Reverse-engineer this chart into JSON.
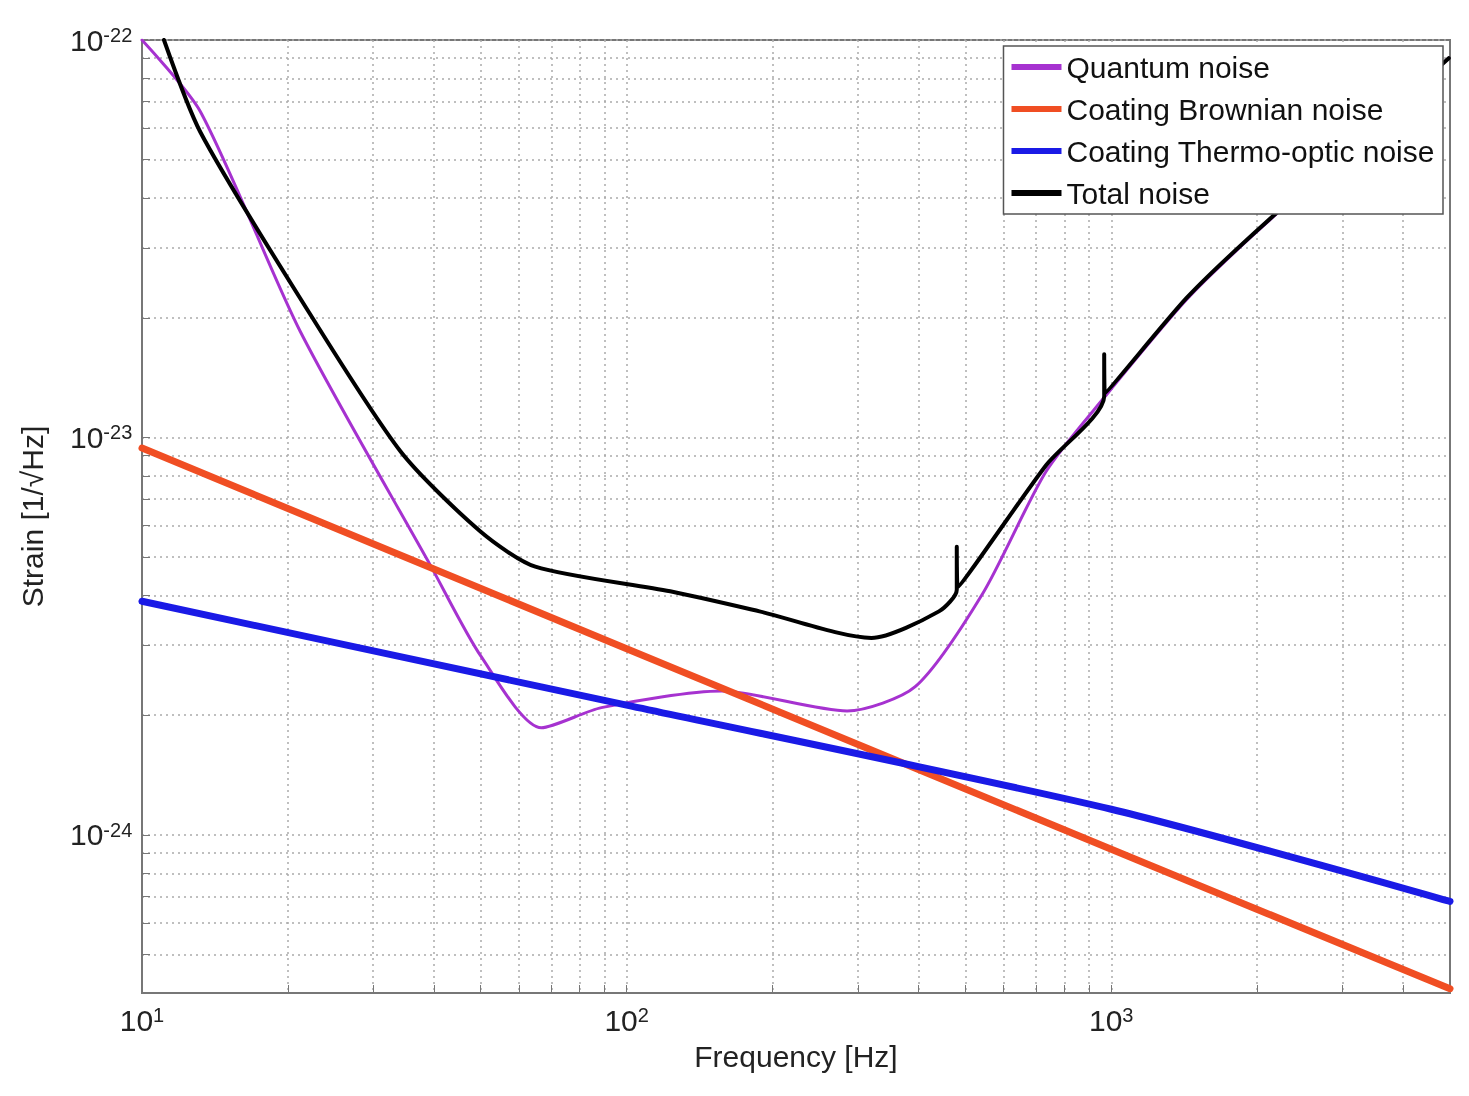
{
  "chart_data": {
    "type": "line",
    "xlabel": "Frequency [Hz]",
    "ylabel": "Strain [1/√Hz]",
    "log": "xy",
    "grid": true,
    "legend": "top right",
    "xlim": [
      10,
      5000
    ],
    "ylim": [
      4e-25,
      1e-22
    ],
    "xticks": [
      {
        "value": 10,
        "label": "10$^{1}$"
      },
      {
        "value": 20,
        "label": null
      },
      {
        "value": 30,
        "label": null
      },
      {
        "value": 40,
        "label": null
      },
      {
        "value": 50,
        "label": null
      },
      {
        "value": 60,
        "label": null
      },
      {
        "value": 70,
        "label": null
      },
      {
        "value": 80,
        "label": null
      },
      {
        "value": 90,
        "label": null
      },
      {
        "value": 100,
        "label": "10$^{2}$"
      },
      {
        "value": 200,
        "label": null
      },
      {
        "value": 300,
        "label": null
      },
      {
        "value": 400,
        "label": null
      },
      {
        "value": 500,
        "label": null
      },
      {
        "value": 600,
        "label": null
      },
      {
        "value": 700,
        "label": null
      },
      {
        "value": 800,
        "label": null
      },
      {
        "value": 900,
        "label": null
      },
      {
        "value": 1000,
        "label": "10$^{3}$"
      },
      {
        "value": 2000,
        "label": null
      },
      {
        "value": 3000,
        "label": null
      },
      {
        "value": 4000,
        "label": null
      }
    ],
    "yticks": [
      {
        "value": 1e-22,
        "label": "10$^{-22}$"
      },
      {
        "value": 9e-23,
        "label": null
      },
      {
        "value": 8e-23,
        "label": null
      },
      {
        "value": 7e-23,
        "label": null
      },
      {
        "value": 6e-23,
        "label": null
      },
      {
        "value": 5e-23,
        "label": null
      },
      {
        "value": 4e-23,
        "label": null
      },
      {
        "value": 3e-23,
        "label": null
      },
      {
        "value": 2e-23,
        "label": null
      },
      {
        "value": 1e-23,
        "label": "10$^{-23}$"
      },
      {
        "value": 9e-24,
        "label": null
      },
      {
        "value": 8e-24,
        "label": null
      },
      {
        "value": 7e-24,
        "label": null
      },
      {
        "value": 6e-24,
        "label": null
      },
      {
        "value": 5e-24,
        "label": null
      },
      {
        "value": 4e-24,
        "label": null
      },
      {
        "value": 3e-24,
        "label": null
      },
      {
        "value": 2e-24,
        "label": null
      },
      {
        "value": 1e-24,
        "label": "10$^{-24}$"
      },
      {
        "value": 9e-25,
        "label": null
      },
      {
        "value": 8e-25,
        "label": null
      },
      {
        "value": 7e-25,
        "label": null
      },
      {
        "value": 6e-25,
        "label": null
      },
      {
        "value": 5e-25,
        "label": null
      }
    ],
    "series": [
      {
        "name": "Quantum noise",
        "color": "#a632d0",
        "x": [
          10,
          13.2,
          21.2,
          39.5,
          50,
          66.7,
          88.7,
          157,
          285,
          394,
          543,
          733,
          967,
          1429,
          1968,
          4970
        ],
        "values": [
          1e-22,
          6.6e-23,
          1.85e-23,
          4.73e-24,
          2.82e-24,
          1.86e-24,
          2.09e-24,
          2.3e-24,
          2.05e-24,
          2.36e-24,
          4.05e-24,
          8.2e-24,
          1.26e-23,
          2.22e-23,
          3.24e-23,
          9e-23
        ]
      },
      {
        "name": "Coating Brownian noise",
        "color": "#f04e23",
        "x": [
          10,
          100,
          1000,
          5000
        ],
        "values": [
          9.4e-24,
          2.94e-24,
          9.2e-25,
          4.1e-25
        ]
      },
      {
        "name": "Coating Thermo-optic noise",
        "color": "#1a1ae6",
        "x": [
          10,
          100,
          1000,
          5000
        ],
        "values": [
          3.87e-24,
          2.12e-24,
          1.16e-24,
          6.8e-25
        ]
      },
      {
        "name": "Total noise",
        "color": "#000000",
        "x": [
          11.1,
          13.2,
          21.2,
          34.2,
          50,
          64.8,
          123,
          188,
          320,
          441,
          480,
          480,
          482,
          733,
          967,
          967,
          970,
          1429,
          1968,
          4970
        ],
        "values": [
          1e-22,
          5.86e-23,
          2.24e-23,
          9.2e-24,
          5.79e-24,
          4.73e-24,
          4.1e-24,
          3.65e-24,
          3.13e-24,
          3.65e-24,
          4.14e-24,
          5.31e-24,
          4.2e-24,
          8.5e-24,
          1.27e-23,
          1.62e-23,
          1.29e-23,
          2.24e-23,
          3.26e-23,
          9e-23
        ]
      }
    ]
  }
}
